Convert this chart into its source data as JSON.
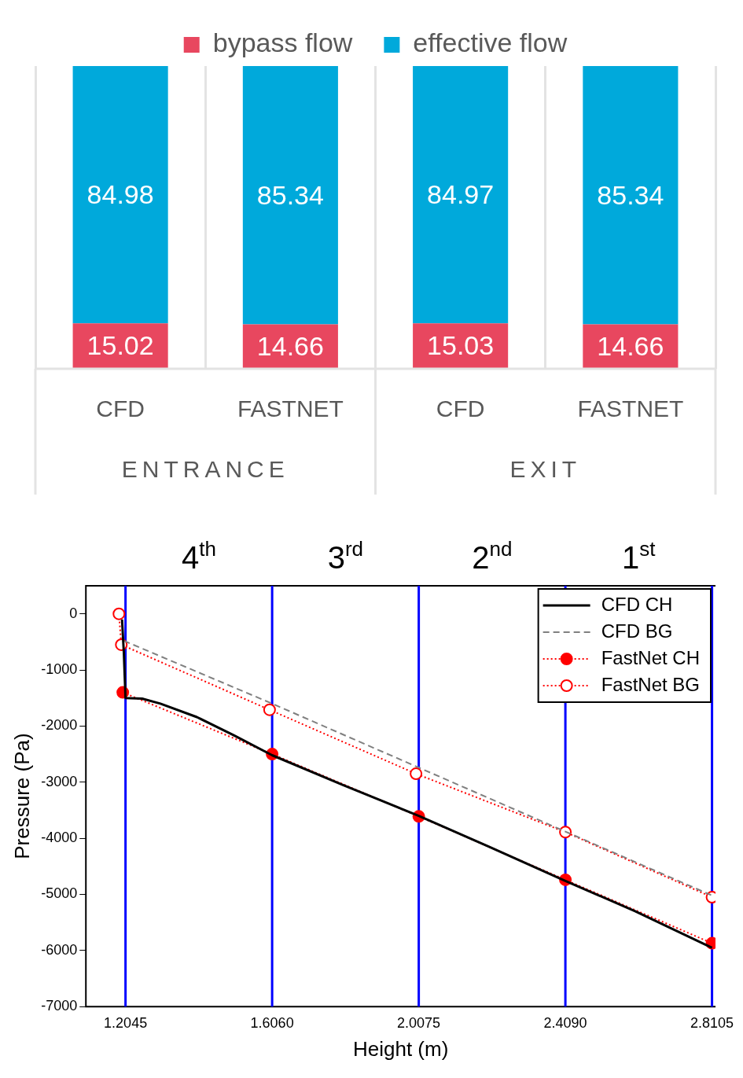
{
  "chart_data": [
    {
      "type": "bar",
      "stacked": true,
      "categories": [
        "CFD",
        "FASTNET",
        "CFD",
        "FASTNET"
      ],
      "series": [
        {
          "name": "bypass flow",
          "color": "#e8475f",
          "values": [
            15.02,
            14.66,
            15.03,
            14.66
          ]
        },
        {
          "name": "effective flow",
          "color": "#00a9db",
          "values": [
            84.98,
            85.34,
            84.97,
            85.34
          ]
        }
      ],
      "data_labels": true,
      "legend": "top",
      "grid": "x",
      "tick_labels": "x",
      "annotations": [
        "ENTRANCE",
        "EXIT"
      ]
    },
    {
      "type": "line",
      "xlabel": "Height (m)",
      "ylabel": "Pressure (Pa)",
      "series": [
        {
          "name": "CFD CH",
          "color": "#000000",
          "line_style": "solid",
          "marker": "none",
          "x": [
            1.195,
            1.2,
            1.2045,
            1.25,
            1.3,
            1.4,
            1.5,
            1.606,
            1.8,
            2.0075,
            2.2,
            2.409,
            2.6,
            2.8105
          ],
          "values": [
            -100,
            -700,
            -1500,
            -1510,
            -1600,
            -1840,
            -2160,
            -2520,
            -3050,
            -3600,
            -4150,
            -4760,
            -5300,
            -5950
          ]
        },
        {
          "name": "CFD BG",
          "color": "#808080",
          "line_style": "dashed",
          "marker": "none",
          "x": [
            1.2,
            1.606,
            2.0075,
            2.409,
            2.8105
          ],
          "values": [
            -480,
            -1600,
            -2740,
            -3880,
            -5020
          ]
        },
        {
          "name": "FastNet CH",
          "color": "#ff0000",
          "line_style": "dotted",
          "marker": "circle",
          "x": [
            1.197,
            1.606,
            2.0075,
            2.409,
            2.8105
          ],
          "values": [
            -1400,
            -2500,
            -3610,
            -4740,
            -5870
          ]
        },
        {
          "name": "FastNet BG",
          "color": "#ff0000",
          "line_style": "dotted",
          "marker": "circle_open",
          "x": [
            1.1865,
            1.193,
            1.599,
            2.0,
            2.409,
            2.8105
          ],
          "values": [
            0,
            -550,
            -1710,
            -2850,
            -3890,
            -5050
          ]
        }
      ],
      "xlim": [
        1.096,
        2.82
      ],
      "xticks": [
        1.2045,
        {
          "value": 1.606,
          "label": "1.6060"
        },
        2.0075,
        {
          "value": 2.409,
          "label": "2.4090"
        },
        2.8105
      ],
      "ylim": [
        -7000,
        500
      ],
      "yticks": [
        -7000,
        -6000,
        -5000,
        -4000,
        -3000,
        -2000,
        -1000,
        0
      ],
      "ref_lines": [
        {
          "axis": "x",
          "value": 1.2045,
          "color": "#0000ff"
        },
        {
          "axis": "x",
          "value": 1.606,
          "color": "#0000ff"
        },
        {
          "axis": "x",
          "value": 2.0075,
          "color": "#0000ff"
        },
        {
          "axis": "x",
          "value": 2.409,
          "color": "#0000ff"
        },
        {
          "axis": "x",
          "value": 2.8105,
          "color": "#0000ff"
        }
      ],
      "annotations": [
        "4$^{th}$",
        "3$^{rd}$",
        "2$^{nd}$",
        "1$^{st}$"
      ],
      "legend": "top right",
      "grid": false
    }
  ]
}
